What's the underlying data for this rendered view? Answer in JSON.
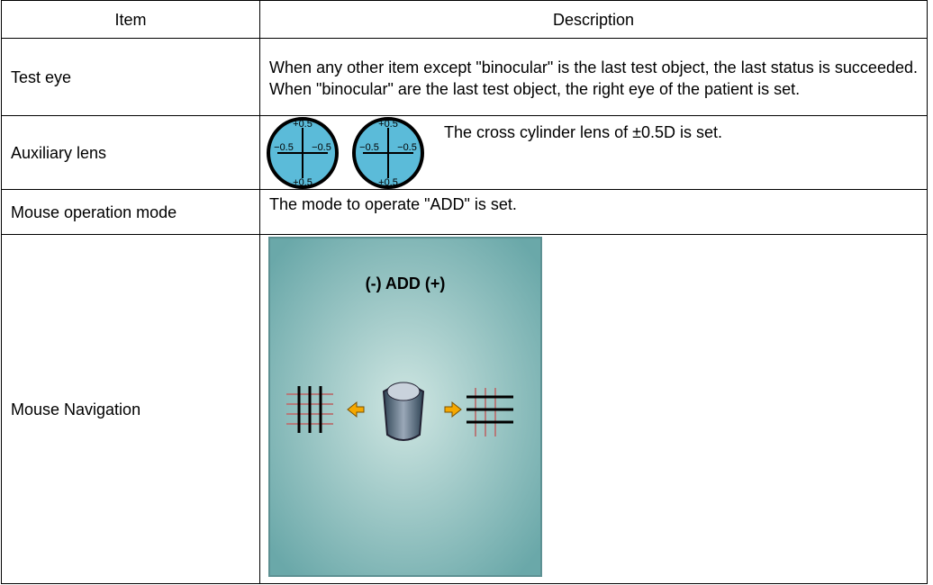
{
  "table": {
    "header": [
      "Item",
      "Description"
    ],
    "rows": [
      {
        "item": "Test eye",
        "description": "When any other item except \"binocular\" is the last test object, the last status is succeeded.  When \"binocular\" are the last test object, the right eye of the patient is set."
      },
      {
        "item": "Auxiliary lens",
        "description": "The cross cylinder lens of ±0.5D is set.",
        "lenses": [
          {
            "top": "+0.5",
            "left": "−0.5",
            "right": "−0.5",
            "bottom": "+0.5"
          },
          {
            "top": "+0.5",
            "left": "−0.5",
            "right": "−0.5",
            "bottom": "+0.5"
          }
        ]
      },
      {
        "item": "Mouse operation mode",
        "description": "The mode to operate \"ADD\" is set."
      },
      {
        "item": "Mouse Navigation",
        "panel_label": "(-) ADD (+)"
      }
    ]
  }
}
